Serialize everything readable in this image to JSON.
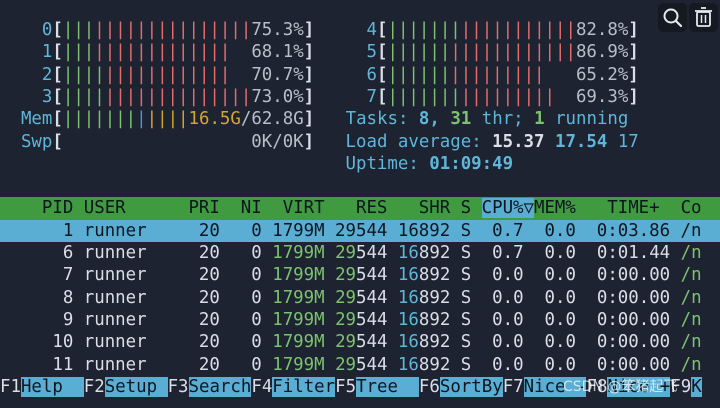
{
  "screen": {
    "background": "#1d2331",
    "fg": "#d9dee7",
    "lines": [
      {
        "segments": [
          {
            "text": "    0",
            "fg": "#5fb6d9"
          },
          {
            "text": "[",
            "bold": true
          },
          {
            "text": "|||",
            "fg": "#7cc36e"
          },
          {
            "text": "|||||||||||||||",
            "fg": "#e36d6d"
          },
          {
            "text": "75.3%",
            "fg": "#b8bec8"
          },
          {
            "text": "]",
            "bold": true
          },
          {
            "text": "     4",
            "fg": "#5fb6d9"
          },
          {
            "text": "[",
            "bold": true
          },
          {
            "text": "|||||||",
            "fg": "#7cc36e"
          },
          {
            "text": "|||||||||||",
            "fg": "#e36d6d"
          },
          {
            "text": "82.8%",
            "fg": "#b8bec8"
          },
          {
            "text": "]",
            "bold": true
          }
        ]
      },
      {
        "segments": [
          {
            "text": "    1",
            "fg": "#5fb6d9"
          },
          {
            "text": "[",
            "bold": true
          },
          {
            "text": "|||",
            "fg": "#7cc36e"
          },
          {
            "text": "|||||||||||||",
            "fg": "#e36d6d"
          },
          {
            "text": "  68.1%",
            "fg": "#b8bec8"
          },
          {
            "text": "]",
            "bold": true
          },
          {
            "text": "     5",
            "fg": "#5fb6d9"
          },
          {
            "text": "[",
            "bold": true
          },
          {
            "text": "||||||",
            "fg": "#7cc36e"
          },
          {
            "text": "||||||||||||",
            "fg": "#e36d6d"
          },
          {
            "text": "86.9%",
            "fg": "#b8bec8"
          },
          {
            "text": "]",
            "bold": true
          }
        ]
      },
      {
        "segments": [
          {
            "text": "    2",
            "fg": "#5fb6d9"
          },
          {
            "text": "[",
            "bold": true
          },
          {
            "text": "||||",
            "fg": "#7cc36e"
          },
          {
            "text": "||||||||||||",
            "fg": "#e36d6d"
          },
          {
            "text": "  70.7%",
            "fg": "#b8bec8"
          },
          {
            "text": "]",
            "bold": true
          },
          {
            "text": "     6",
            "fg": "#5fb6d9"
          },
          {
            "text": "[",
            "bold": true
          },
          {
            "text": "||||||",
            "fg": "#7cc36e"
          },
          {
            "text": "|||||||||",
            "fg": "#e36d6d"
          },
          {
            "text": "   65.2%",
            "fg": "#b8bec8"
          },
          {
            "text": "]",
            "bold": true
          }
        ]
      },
      {
        "segments": [
          {
            "text": "    3",
            "fg": "#5fb6d9"
          },
          {
            "text": "[",
            "bold": true
          },
          {
            "text": "||||",
            "fg": "#7cc36e"
          },
          {
            "text": "||||||||||||||",
            "fg": "#e36d6d"
          },
          {
            "text": "73.0%",
            "fg": "#b8bec8"
          },
          {
            "text": "]",
            "bold": true
          },
          {
            "text": "     7",
            "fg": "#5fb6d9"
          },
          {
            "text": "[",
            "bold": true
          },
          {
            "text": "|||||||",
            "fg": "#7cc36e"
          },
          {
            "text": "|||||||||",
            "fg": "#e36d6d"
          },
          {
            "text": "  69.3%",
            "fg": "#b8bec8"
          },
          {
            "text": "]",
            "bold": true
          }
        ]
      },
      {
        "segments": [
          {
            "text": "  Mem",
            "fg": "#5fb6d9"
          },
          {
            "text": "[",
            "bold": true
          },
          {
            "text": "|||||||",
            "fg": "#7cc36e"
          },
          {
            "text": "|",
            "fg": "#4d8fe0"
          },
          {
            "text": "||||",
            "fg": "#d4a72c"
          },
          {
            "text": "16.5G",
            "fg": "#d4a72c"
          },
          {
            "text": "/62.8G",
            "fg": "#b8bec8"
          },
          {
            "text": "]",
            "bold": true
          },
          {
            "text": "   Tasks: ",
            "fg": "#5fb6d9"
          },
          {
            "text": "8,",
            "fg": "#5fb6d9",
            "bold": true
          },
          {
            "text": " ",
            "fg": "#5fb6d9"
          },
          {
            "text": "31",
            "fg": "#7cc36e",
            "bold": true
          },
          {
            "text": " thr; ",
            "fg": "#5fb6d9"
          },
          {
            "text": "1",
            "fg": "#7cc36e",
            "bold": true
          },
          {
            "text": " running",
            "fg": "#5fb6d9"
          }
        ]
      },
      {
        "segments": [
          {
            "text": "  Swp",
            "fg": "#5fb6d9"
          },
          {
            "text": "[",
            "bold": true
          },
          {
            "text": "                  0K/0K",
            "fg": "#b8bec8"
          },
          {
            "text": "]",
            "bold": true
          },
          {
            "text": "   Load average: ",
            "fg": "#5fb6d9"
          },
          {
            "text": "15.37",
            "bold": true
          },
          {
            "text": " "
          },
          {
            "text": "17.54",
            "fg": "#5fb6d9",
            "bold": true
          },
          {
            "text": " 17",
            "fg": "#5fb6d9"
          }
        ]
      },
      {
        "segments": [
          {
            "text": "                                 Uptime: ",
            "fg": "#5fb6d9"
          },
          {
            "text": "01:09:49",
            "fg": "#5fb6d9",
            "bold": true
          }
        ]
      },
      {
        "segments": []
      },
      {
        "bg": "#3f9a40",
        "segments": [
          {
            "text": "    PID USER      PRI  NI  VIRT   RES   SHR S ",
            "fg": "#0f1620"
          },
          {
            "text": "CPU%▽",
            "fg": "#0f1620",
            "bg": "#5aaed3"
          },
          {
            "text": "MEM%   TIME+  Co",
            "fg": "#0f1620"
          }
        ]
      },
      {
        "bg": "#5aaed3",
        "segments": [
          {
            "text": "      1 runner     20   0 1799M 29544 16892 S  0.7  0.0  0:03.86 /n",
            "fg": "#0f1620"
          }
        ]
      },
      {
        "segments": [
          {
            "text": "      6 runner     20   0 "
          },
          {
            "text": "1799M",
            "fg": "#7cc36e"
          },
          {
            "text": " "
          },
          {
            "text": "29",
            "fg": "#7cc36e"
          },
          {
            "text": "544 "
          },
          {
            "text": "16",
            "fg": "#5fb6d9"
          },
          {
            "text": "892 S  0.7  0.0  0:01.44 "
          },
          {
            "text": "/n",
            "fg": "#7cc36e"
          }
        ]
      },
      {
        "segments": [
          {
            "text": "      7 runner     20   0 "
          },
          {
            "text": "1799M",
            "fg": "#7cc36e"
          },
          {
            "text": " "
          },
          {
            "text": "29",
            "fg": "#7cc36e"
          },
          {
            "text": "544 "
          },
          {
            "text": "16",
            "fg": "#5fb6d9"
          },
          {
            "text": "892 S  0.0  0.0  0:00.00 "
          },
          {
            "text": "/n",
            "fg": "#7cc36e"
          }
        ]
      },
      {
        "segments": [
          {
            "text": "      8 runner     20   0 "
          },
          {
            "text": "1799M",
            "fg": "#7cc36e"
          },
          {
            "text": " "
          },
          {
            "text": "29",
            "fg": "#7cc36e"
          },
          {
            "text": "544 "
          },
          {
            "text": "16",
            "fg": "#5fb6d9"
          },
          {
            "text": "892 S  0.0  0.0  0:00.00 "
          },
          {
            "text": "/n",
            "fg": "#7cc36e"
          }
        ]
      },
      {
        "segments": [
          {
            "text": "      9 runner     20   0 "
          },
          {
            "text": "1799M",
            "fg": "#7cc36e"
          },
          {
            "text": " "
          },
          {
            "text": "29",
            "fg": "#7cc36e"
          },
          {
            "text": "544 "
          },
          {
            "text": "16",
            "fg": "#5fb6d9"
          },
          {
            "text": "892 S  0.0  0.0  0:00.00 "
          },
          {
            "text": "/n",
            "fg": "#7cc36e"
          }
        ]
      },
      {
        "segments": [
          {
            "text": "     10 runner     20   0 "
          },
          {
            "text": "1799M",
            "fg": "#7cc36e"
          },
          {
            "text": " "
          },
          {
            "text": "29",
            "fg": "#7cc36e"
          },
          {
            "text": "544 "
          },
          {
            "text": "16",
            "fg": "#5fb6d9"
          },
          {
            "text": "892 S  0.0  0.0  0:00.00 "
          },
          {
            "text": "/n",
            "fg": "#7cc36e"
          }
        ]
      },
      {
        "segments": [
          {
            "text": "     11 runner     20   0 "
          },
          {
            "text": "1799M",
            "fg": "#7cc36e"
          },
          {
            "text": " "
          },
          {
            "text": "29",
            "fg": "#7cc36e"
          },
          {
            "text": "544 "
          },
          {
            "text": "16",
            "fg": "#5fb6d9"
          },
          {
            "text": "892 S  0.0  0.0  0:00.00 "
          },
          {
            "text": "/n",
            "fg": "#7cc36e"
          }
        ]
      },
      {
        "segments": [
          {
            "text": "F1"
          },
          {
            "text": "Help  ",
            "fg": "#0f1620",
            "bg": "#5aaed3"
          },
          {
            "text": "F2"
          },
          {
            "text": "Setup ",
            "fg": "#0f1620",
            "bg": "#5aaed3"
          },
          {
            "text": "F3"
          },
          {
            "text": "Search",
            "fg": "#0f1620",
            "bg": "#5aaed3"
          },
          {
            "text": "F4"
          },
          {
            "text": "Filter",
            "fg": "#0f1620",
            "bg": "#5aaed3"
          },
          {
            "text": "F5"
          },
          {
            "text": "Tree  ",
            "fg": "#0f1620",
            "bg": "#5aaed3"
          },
          {
            "text": "F6"
          },
          {
            "text": "SortBy",
            "fg": "#0f1620",
            "bg": "#5aaed3"
          },
          {
            "text": "F7"
          },
          {
            "text": "Nice -",
            "fg": "#0f1620",
            "bg": "#5aaed3"
          },
          {
            "text": "F8"
          },
          {
            "text": "Nice +",
            "fg": "#0f1620",
            "bg": "#5aaed3"
          },
          {
            "text": "F9"
          },
          {
            "text": "K",
            "fg": "#0f1620",
            "bg": "#5aaed3"
          }
        ]
      }
    ]
  },
  "watermark": "CSDN @笨猪起飞"
}
